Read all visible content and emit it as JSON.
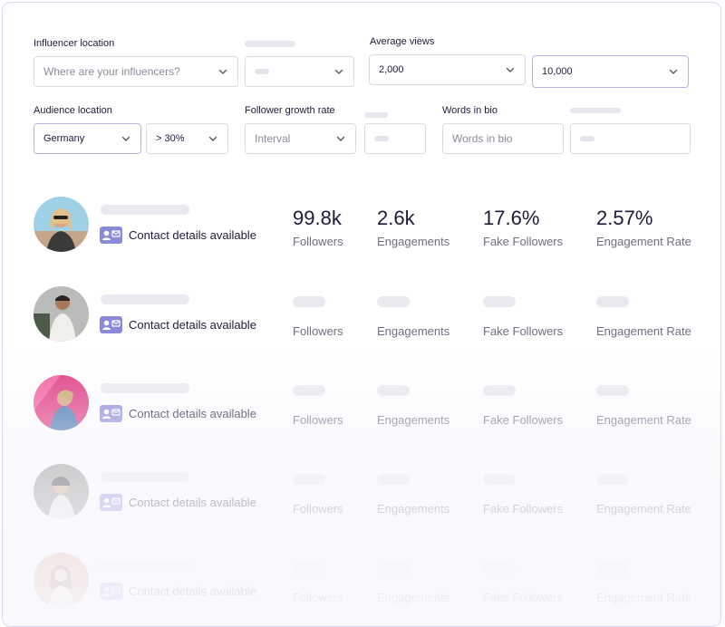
{
  "filters": {
    "influencer_location": {
      "label": "Influencer location",
      "placeholder": "Where are your influencers?"
    },
    "average_views": {
      "label": "Average views",
      "min": "2,000",
      "max": "10,000"
    },
    "audience_location": {
      "label": "Audience location",
      "country": "Germany",
      "threshold": "> 30%"
    },
    "follower_growth_rate": {
      "label": "Follower growth rate",
      "interval_placeholder": "Interval"
    },
    "words_in_bio": {
      "label": "Words in bio",
      "placeholder": "Words in bio"
    }
  },
  "results": {
    "contact_label": "Contact details available",
    "stat_labels": [
      "Followers",
      "Engagements",
      "Fake Followers",
      "Engagement Rate"
    ],
    "first": {
      "followers": "99.8k",
      "engagements": "2.6k",
      "fake_followers": "17.6%",
      "engagement_rate": "2.57%"
    }
  },
  "colors": {
    "accent": "#8a8ad8",
    "focus_border": "#b4b6ea",
    "card_border": "#d8d9f3"
  },
  "icons": {
    "dropdown": "chevron-down-icon",
    "contact": "contact-card-icon"
  }
}
